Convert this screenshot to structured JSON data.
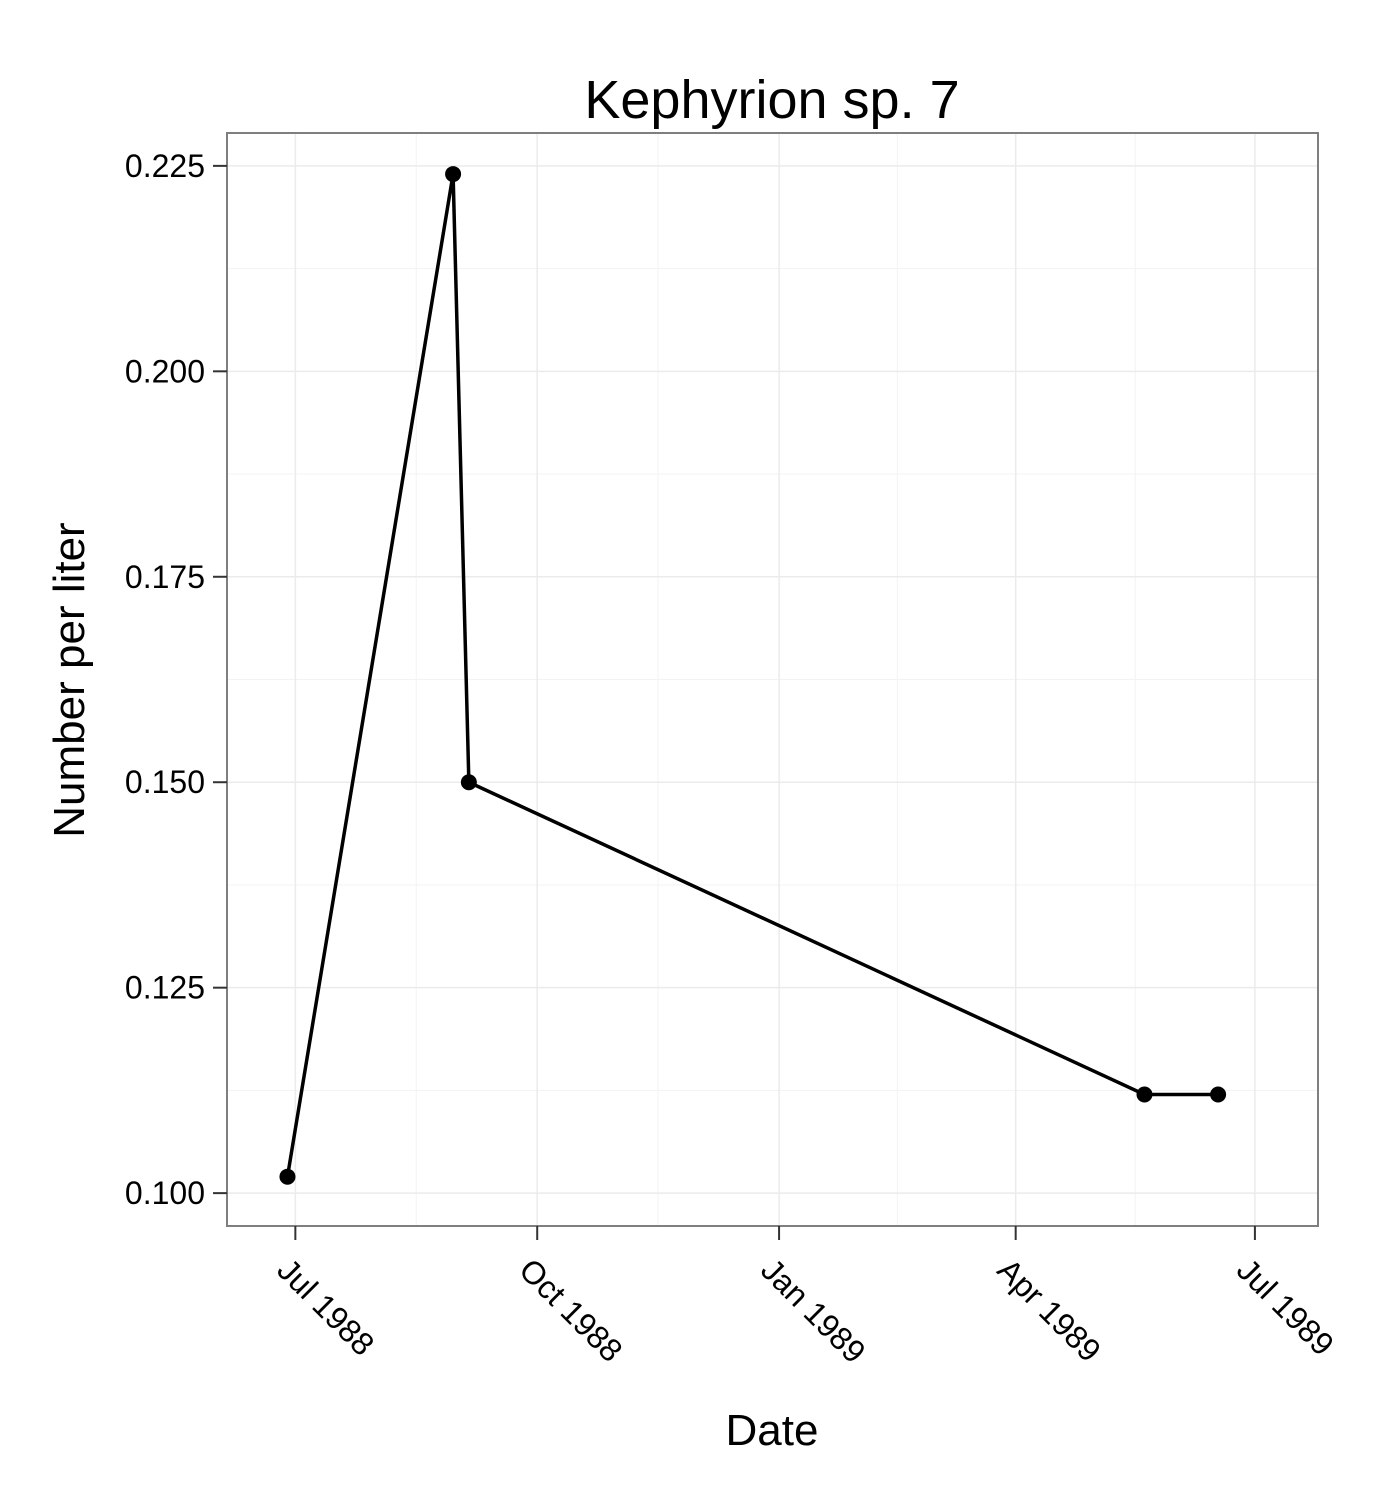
{
  "chart_data": {
    "type": "line",
    "title": "Kephyrion sp. 7",
    "xlabel": "Date",
    "ylabel": "Number per liter",
    "x_is_date": true,
    "xlim": [
      "1988-06-05",
      "1989-07-25"
    ],
    "ylim": [
      0.096,
      0.229
    ],
    "x_ticks": [
      {
        "date": "1988-07-01",
        "label": "Jul 1988"
      },
      {
        "date": "1988-10-01",
        "label": "Oct 1988"
      },
      {
        "date": "1989-01-01",
        "label": "Jan 1989"
      },
      {
        "date": "1989-04-01",
        "label": "Apr 1989"
      },
      {
        "date": "1989-07-01",
        "label": "Jul 1989"
      }
    ],
    "y_ticks": [
      {
        "value": 0.1,
        "label": "0.100"
      },
      {
        "value": 0.125,
        "label": "0.125"
      },
      {
        "value": 0.15,
        "label": "0.150"
      },
      {
        "value": 0.175,
        "label": "0.175"
      },
      {
        "value": 0.2,
        "label": "0.200"
      },
      {
        "value": 0.225,
        "label": "0.225"
      }
    ],
    "grid": true,
    "legend": "none",
    "series": [
      {
        "points": [
          {
            "x": "1988-06-28",
            "y": 0.102
          },
          {
            "x": "1988-08-30",
            "y": 0.224
          },
          {
            "x": "1988-09-05",
            "y": 0.15
          },
          {
            "x": "1989-05-20",
            "y": 0.112
          },
          {
            "x": "1989-06-17",
            "y": 0.112
          }
        ]
      }
    ],
    "colors": {
      "line": "#000000",
      "point": "#000000",
      "panel_border": "#7f7f7f",
      "grid": "#ebebeb",
      "axis_tick": "#333333"
    }
  }
}
